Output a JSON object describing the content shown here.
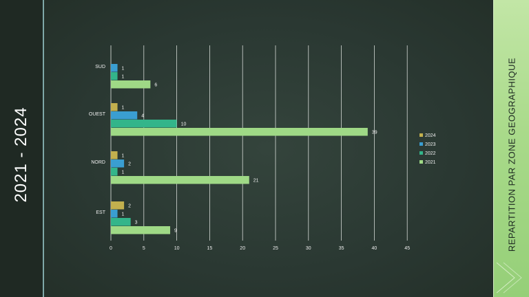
{
  "slide": {
    "side_title": "2021 - 2024",
    "right_title": "REPARTITION   PAR ZONE GEOGRAPHIQUE"
  },
  "colors": {
    "2024": "#c2b04e",
    "2023": "#3a9ed1",
    "2022": "#33b58a",
    "2021": "#9fd986",
    "grid": "#e8ece8",
    "text": "#f0f0f0",
    "background": "#2b3a33"
  },
  "chart_data": {
    "type": "bar",
    "orientation": "horizontal",
    "categories": [
      "SUD",
      "OUEST",
      "NORD",
      "EST"
    ],
    "series": [
      {
        "name": "2024",
        "values": [
          0,
          1,
          1,
          2
        ]
      },
      {
        "name": "2023",
        "values": [
          1,
          4,
          2,
          1
        ]
      },
      {
        "name": "2022",
        "values": [
          1,
          10,
          1,
          3
        ]
      },
      {
        "name": "2021",
        "values": [
          6,
          39,
          21,
          9
        ]
      }
    ],
    "data_labels": [
      {
        "category": "SUD",
        "series": "2023",
        "label": "1"
      },
      {
        "category": "SUD",
        "series": "2022",
        "label": "1"
      },
      {
        "category": "SUD",
        "series": "2021",
        "label": "6"
      },
      {
        "category": "OUEST",
        "series": "2024",
        "label": "1"
      },
      {
        "category": "OUEST",
        "series": "2023",
        "label": "4"
      },
      {
        "category": "OUEST",
        "series": "2022",
        "label": "10"
      },
      {
        "category": "OUEST",
        "series": "2021",
        "label": "39"
      },
      {
        "category": "NORD",
        "series": "2024",
        "label": "1"
      },
      {
        "category": "NORD",
        "series": "2023",
        "label": "2"
      },
      {
        "category": "NORD",
        "series": "2022",
        "label": "1"
      },
      {
        "category": "NORD",
        "series": "2021",
        "label": "21"
      },
      {
        "category": "EST",
        "series": "2024",
        "label": "2"
      },
      {
        "category": "EST",
        "series": "2023",
        "label": "1"
      },
      {
        "category": "EST",
        "series": "2022",
        "label": "3"
      },
      {
        "category": "EST",
        "series": "2021",
        "label": "9"
      }
    ],
    "x_ticks": [
      "0",
      "5",
      "10",
      "15",
      "20",
      "25",
      "30",
      "35",
      "40",
      "45"
    ],
    "xlim": [
      0,
      45
    ],
    "title": "",
    "xlabel": "",
    "ylabel": "",
    "grid": "vertical",
    "legend": {
      "placement": "right",
      "entries": [
        "2024",
        "2023",
        "2022",
        "2021"
      ]
    }
  }
}
